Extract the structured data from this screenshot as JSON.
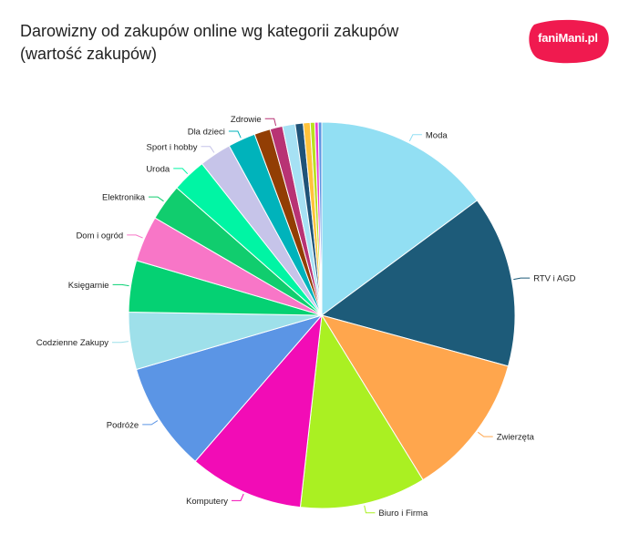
{
  "title": "Darowizny od zakupów online wg kategorii zakupów\n(wartość zakupów)",
  "logo": {
    "text": "faniMani.pl",
    "color": "#f01a4f"
  },
  "chart_data": {
    "type": "pie",
    "title": "Darowizny od zakupów online wg kategorii zakupów (wartość zakupów)",
    "start": "top",
    "direction": "clockwise",
    "slices": [
      {
        "label": "Moda",
        "value": 15.5,
        "color": "#92dff3",
        "show_label": true
      },
      {
        "label": "RTV i AGD",
        "value": 15.0,
        "color": "#1d5b79",
        "show_label": true
      },
      {
        "label": "Zwierzęta",
        "value": 12.5,
        "color": "#ffa64d",
        "show_label": true
      },
      {
        "label": "Biuro i Firma",
        "value": 11.0,
        "color": "#aaf022",
        "show_label": true
      },
      {
        "label": "Komputery",
        "value": 10.0,
        "color": "#f20cb6",
        "show_label": true
      },
      {
        "label": "Podróże",
        "value": 9.5,
        "color": "#5b95e5",
        "show_label": true
      },
      {
        "label": "Codzienne Zakupy",
        "value": 5.0,
        "color": "#9ee0ea",
        "show_label": true
      },
      {
        "label": "Księgarnie",
        "value": 4.5,
        "color": "#05d173",
        "show_label": true
      },
      {
        "label": "Dom i ogród",
        "value": 4.0,
        "color": "#f876c7",
        "show_label": true
      },
      {
        "label": "Elektronika",
        "value": 3.2,
        "color": "#11cd6e",
        "show_label": true
      },
      {
        "label": "Uroda",
        "value": 3.0,
        "color": "#00f5a4",
        "show_label": true
      },
      {
        "label": "Sport i hobby",
        "value": 2.8,
        "color": "#c6c4e9",
        "show_label": true
      },
      {
        "label": "Dla dzieci",
        "value": 2.4,
        "color": "#00b3bb",
        "show_label": true
      },
      {
        "label": "",
        "value": 1.4,
        "color": "#923e04",
        "show_label": false
      },
      {
        "label": "Zdrowie",
        "value": 1.1,
        "color": "#b83374",
        "show_label": true
      },
      {
        "label": "",
        "value": 1.1,
        "color": "#a6e1f4",
        "show_label": false
      },
      {
        "label": "",
        "value": 0.7,
        "color": "#1f5378",
        "show_label": false
      },
      {
        "label": "",
        "value": 0.6,
        "color": "#ffc33b",
        "show_label": false
      },
      {
        "label": "",
        "value": 0.4,
        "color": "#b9e11f",
        "show_label": false
      },
      {
        "label": "",
        "value": 0.3,
        "color": "#e83fd0",
        "show_label": false
      },
      {
        "label": "",
        "value": 0.3,
        "color": "#5e96e2",
        "show_label": false
      }
    ]
  }
}
